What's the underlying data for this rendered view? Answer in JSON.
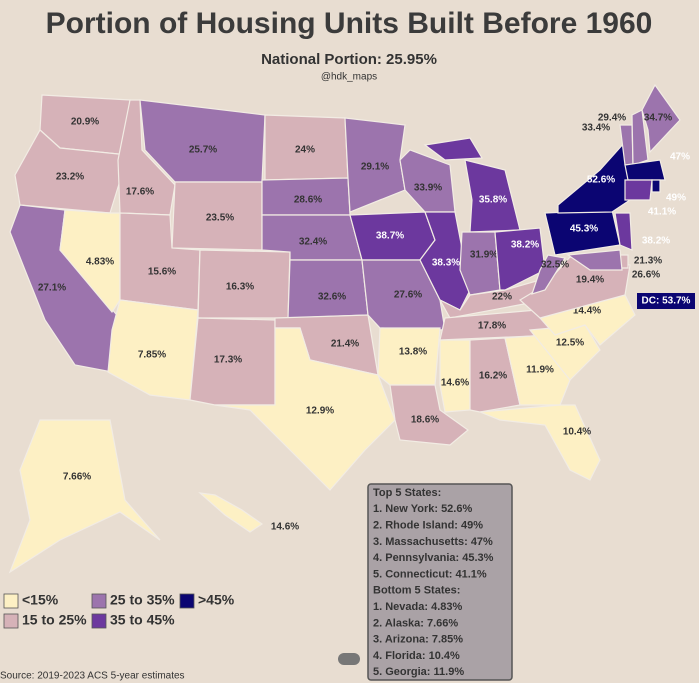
{
  "chart_data": {
    "type": "choropleth",
    "title": "Portion of Housing Units Built Before 1960",
    "subtitle": "National Portion: 25.95%",
    "credit": "@hdk_maps",
    "source": "Source: 2019-2023 ACS 5-year estimates",
    "values": [
      20.9,
      23.2,
      27.1,
      4.83,
      17.6,
      25.7,
      23.5,
      15.6,
      7.85,
      16.3,
      17.3,
      24,
      28.6,
      32.4,
      32.6,
      21.4,
      12.9,
      29.1,
      38.7,
      27.6,
      13.8,
      18.6,
      33.9,
      38.3,
      14.6,
      35.8,
      31.9,
      22,
      17.8,
      16.2,
      38.2,
      11.9,
      10.4,
      12.5,
      14.4,
      19.4,
      32.5,
      45.3,
      52.6,
      29.4,
      33.4,
      34.7,
      47,
      49,
      41.1,
      38.2,
      21.3,
      26.6,
      53.7,
      7.66,
      14.6
    ],
    "value_labels": [
      "20.9%",
      "23.2%",
      "27.1%",
      "4.83%",
      "17.6%",
      "25.7%",
      "23.5%",
      "15.6%",
      "7.85%",
      "16.3%",
      "17.3%",
      "24%",
      "28.6%",
      "32.4%",
      "32.6%",
      "21.4%",
      "12.9%",
      "29.1%",
      "38.7%",
      "27.6%",
      "13.8%",
      "18.6%",
      "33.9%",
      "38.3%",
      "14.6%",
      "35.8%",
      "31.9%",
      "22%",
      "17.8%",
      "16.2%",
      "38.2%",
      "11.9%",
      "10.4%",
      "12.5%",
      "14.4%",
      "19.4%",
      "32.5%",
      "45.3%",
      "52.6%",
      "29.4%",
      "33.4%",
      "34.7%",
      "47%",
      "49%",
      "41.1%",
      "38.2%",
      "21.3%",
      "26.6%",
      "DC: 53.7%",
      "7.66%",
      "14.6%"
    ],
    "legend": {
      "items": [
        {
          "label": "<15%",
          "color": "#fdf0c4"
        },
        {
          "label": "15 to 25%",
          "color": "#d6b2b8"
        },
        {
          "label": "25 to 35%",
          "color": "#9c74ad"
        },
        {
          "label": "35 to 45%",
          "color": "#6c389e"
        },
        {
          "label": ">45%",
          "color": "#0b0572"
        }
      ],
      "breaks": [
        15,
        25,
        35,
        45
      ]
    },
    "rankings": {
      "top_title": "Top 5 States:",
      "top": [
        "1.  New York: 52.6%",
        "2.  Rhode Island: 49%",
        "3.  Massachusetts: 47%",
        "4.  Pennsylvania: 45.3%",
        "5.  Connecticut: 41.1%"
      ],
      "bottom_title": "Bottom 5 States:",
      "bottom": [
        "1.  Nevada: 4.83%",
        "2.  Alaska: 7.66%",
        "3.  Arizona: 7.85%",
        "4.  Florida: 10.4%",
        "5.  Georgia: 11.9%"
      ]
    }
  }
}
